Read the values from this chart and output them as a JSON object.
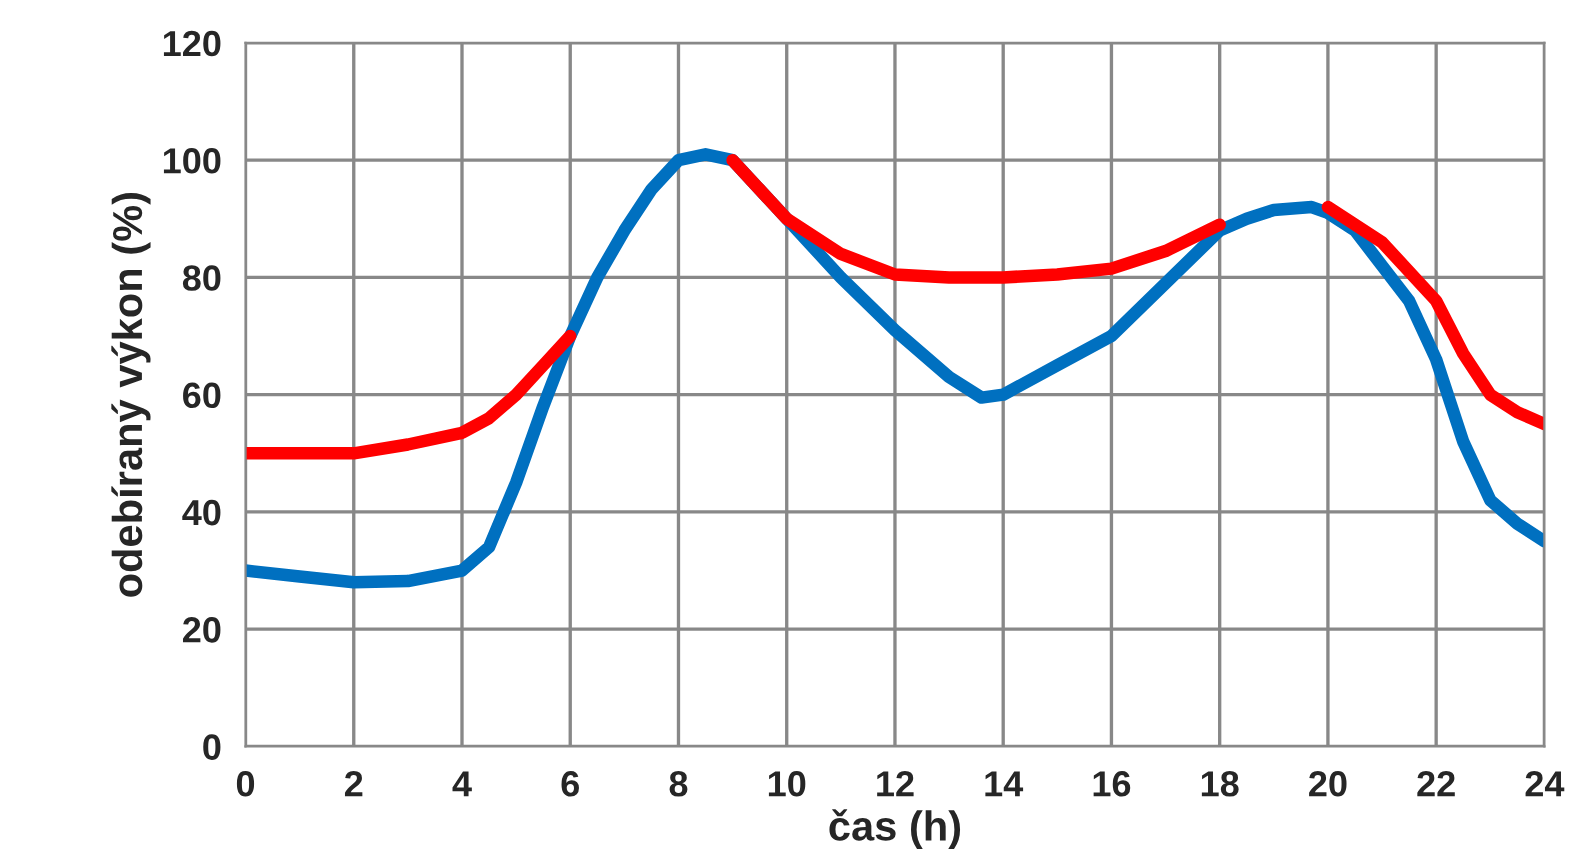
{
  "chart_data": {
    "type": "line",
    "xlabel": "čas (h)",
    "ylabel": "odebíraný výkon (%)",
    "xlim": [
      0,
      24
    ],
    "ylim": [
      0,
      120
    ],
    "xticks": [
      0,
      2,
      4,
      6,
      8,
      10,
      12,
      14,
      16,
      18,
      20,
      22,
      24
    ],
    "yticks": [
      0,
      20,
      40,
      60,
      80,
      100,
      120
    ],
    "grid": true,
    "marker": "none",
    "line_style": "solid",
    "series": [
      {
        "color": "#0070c0",
        "x": [
          0,
          1,
          2,
          3,
          4,
          4.5,
          5,
          5.5,
          6,
          6.5,
          7,
          7.5,
          8,
          8.5,
          9,
          10,
          11,
          12,
          13,
          13.6,
          14,
          15,
          16,
          17,
          18,
          18.5,
          19,
          19.7,
          20,
          20.5,
          21,
          21.5,
          22,
          22.5,
          23,
          23.5,
          24
        ],
        "values": [
          30,
          29,
          28,
          28.2,
          30,
          34,
          45,
          58,
          70,
          80,
          88,
          95,
          100,
          101,
          100,
          90,
          80,
          71,
          63,
          59.5,
          60,
          65,
          70,
          79,
          88,
          90,
          91.5,
          92,
          91,
          88,
          82,
          76,
          66,
          52,
          42,
          38,
          35
        ]
      },
      {
        "color": "#ff0000",
        "x": [
          0,
          1,
          2,
          3,
          4,
          4.5,
          5,
          5.5,
          6,
          7.5,
          9,
          10,
          11,
          12,
          13,
          14,
          15,
          16,
          17,
          18,
          19,
          20,
          21,
          22,
          22.5,
          23,
          23.5,
          24
        ],
        "values": [
          50,
          50,
          50,
          51.5,
          53.5,
          56,
          60,
          65,
          70,
          null,
          100,
          90,
          84,
          80.5,
          80,
          80,
          80.5,
          81.5,
          84.5,
          89,
          null,
          92,
          86,
          76,
          67,
          60,
          57,
          55
        ]
      }
    ]
  }
}
